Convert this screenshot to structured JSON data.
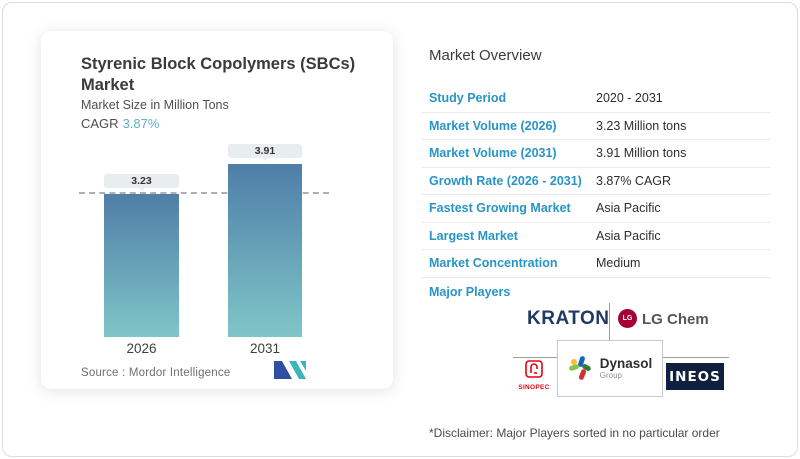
{
  "left_card": {
    "title_line1": "Styrenic Block Copolymers (SBCs)",
    "title_line2": "Market",
    "subtitle": "Market Size in Million Tons",
    "cagr_label": "CAGR",
    "cagr_value": "3.87%",
    "source": "Source :  Mordor Intelligence"
  },
  "chart_data": {
    "type": "bar",
    "categories": [
      "2026",
      "2031"
    ],
    "values": [
      3.23,
      3.91
    ],
    "labels": [
      "3.23",
      "3.91"
    ],
    "title": "Styrenic Block Copolymers (SBCs) Market",
    "ylabel": "Market Size in Million Tons",
    "reference_line": 3.23,
    "grid": false,
    "bar_color_top": "#4f7ea7",
    "bar_color_bottom": "#7fc6c8"
  },
  "overview": {
    "heading": "Market Overview",
    "rows": [
      {
        "label": "Study Period",
        "value": "2020 - 2031"
      },
      {
        "label": "Market Volume (2026)",
        "value": "3.23 Million tons"
      },
      {
        "label": "Market Volume (2031)",
        "value": "3.91 Million tons"
      },
      {
        "label": "Growth Rate (2026 - 2031)",
        "value": "3.87% CAGR"
      },
      {
        "label": "Fastest Growing Market",
        "value": "Asia Pacific"
      },
      {
        "label": "Largest Market",
        "value": "Asia Pacific"
      },
      {
        "label": "Market Concentration",
        "value": "Medium"
      }
    ],
    "major_players_label": "Major Players",
    "players": {
      "kraton": "KRATON",
      "lg_monogram": "LG",
      "lg_chem": "LG Chem",
      "sinopec": "SINOPEC",
      "dynasol": "Dynasol",
      "dynasol_sub": "Group",
      "ineos": "INEOS"
    },
    "disclaimer": "*Disclaimer: Major Players sorted in no particular order"
  },
  "colors": {
    "accent_blue": "#2795c6",
    "cagr_teal": "#63afc8",
    "kraton_navy": "#203a61",
    "lg_red": "#a50034",
    "sinopec_red": "#e60012",
    "ineos_navy": "#0f1f3d",
    "mordor_navy": "#2f4fa2",
    "mordor_teal": "#38b6bc"
  }
}
